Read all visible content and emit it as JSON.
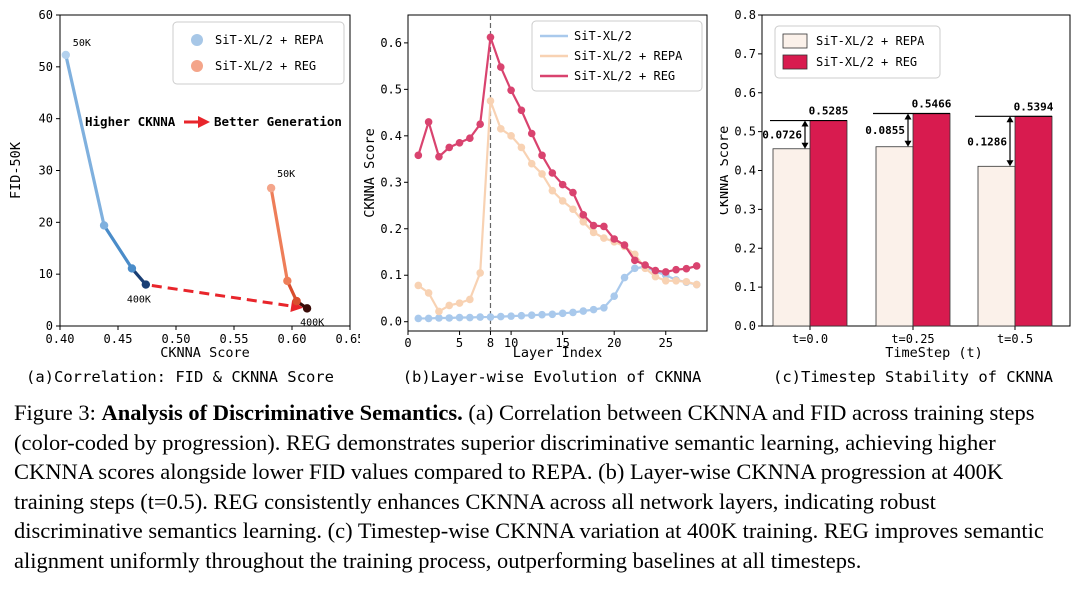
{
  "chart_data": [
    {
      "type": "line",
      "id": "a",
      "caption": "(a)Correlation: FID & CKNNA Score",
      "xlabel": "CKNNA Score",
      "ylabel": "FID-50K",
      "xlim": [
        0.4,
        0.65
      ],
      "ylim": [
        0,
        60
      ],
      "xticks": [
        "0.40",
        "0.45",
        "0.50",
        "0.55",
        "0.60",
        "0.65"
      ],
      "xtick_values": [
        0.4,
        0.45,
        0.5,
        0.55,
        0.6,
        0.65
      ],
      "yticks": [
        "0",
        "10",
        "20",
        "30",
        "40",
        "50",
        "60"
      ],
      "ytick_values": [
        0,
        10,
        20,
        30,
        40,
        50,
        60
      ],
      "legend": [
        "SiT-XL/2 + REPA",
        "SiT-XL/2 + REG"
      ],
      "legend_colors": [
        "#a7c7e7",
        "#f4a58a"
      ],
      "series": [
        {
          "name": "SiT-XL/2 + REPA",
          "x": [
            0.405,
            0.438,
            0.462,
            0.474
          ],
          "y": [
            52.3,
            19.4,
            11.1,
            8.0
          ],
          "colors": [
            "#b3d1ee",
            "#7fb0de",
            "#4a8cc9",
            "#1a3f75"
          ]
        },
        {
          "name": "SiT-XL/2 + REG",
          "x": [
            0.582,
            0.596,
            0.604,
            0.613
          ],
          "y": [
            26.6,
            8.7,
            4.8,
            3.4
          ],
          "colors": [
            "#f4a58a",
            "#ee7e59",
            "#d94e2e",
            "#3a0c08"
          ]
        }
      ],
      "annotations": {
        "repa_start": "50K",
        "reg_start": "50K",
        "repa_end": "400K",
        "reg_end": "400K",
        "message_left": "Higher CKNNA",
        "message_right": "Better Generation"
      }
    },
    {
      "type": "line",
      "id": "b",
      "caption": "(b)Layer-wise Evolution of CKNNA",
      "xlabel": "Layer Index",
      "ylabel": "CKNNA Score",
      "xlim": [
        0,
        29
      ],
      "ylim": [
        -0.02,
        0.66
      ],
      "xticks": [
        "0",
        "5",
        "8",
        "10",
        "15",
        "20",
        "25"
      ],
      "xtick_values": [
        0,
        5,
        8,
        10,
        15,
        20,
        25
      ],
      "yticks": [
        "0.0",
        "0.1",
        "0.2",
        "0.3",
        "0.4",
        "0.5",
        "0.6"
      ],
      "ytick_values": [
        0.0,
        0.1,
        0.2,
        0.3,
        0.4,
        0.5,
        0.6
      ],
      "vline_x": 8,
      "legend": [
        "SiT-XL/2",
        "SiT-XL/2 + REPA",
        "SiT-XL/2 + REG"
      ],
      "x": [
        1,
        2,
        3,
        4,
        5,
        6,
        7,
        8,
        9,
        10,
        11,
        12,
        13,
        14,
        15,
        16,
        17,
        18,
        19,
        20,
        21,
        22,
        23,
        24,
        25,
        26,
        27,
        28
      ],
      "series": [
        {
          "name": "SiT-XL/2",
          "color": "#a9c9ec",
          "values": [
            0.007,
            0.007,
            0.008,
            0.008,
            0.009,
            0.009,
            0.01,
            0.01,
            0.011,
            0.012,
            0.013,
            0.014,
            0.015,
            0.016,
            0.018,
            0.02,
            0.023,
            0.026,
            0.03,
            0.055,
            0.095,
            0.115,
            0.118,
            0.108,
            0.1,
            0.09,
            0.085,
            0.08
          ]
        },
        {
          "name": "SiT-XL/2 + REPA",
          "color": "#f8d2b3",
          "values": [
            0.078,
            0.062,
            0.022,
            0.035,
            0.04,
            0.048,
            0.105,
            0.475,
            0.415,
            0.4,
            0.375,
            0.34,
            0.318,
            0.282,
            0.26,
            0.242,
            0.215,
            0.192,
            0.18,
            0.172,
            0.162,
            0.145,
            0.115,
            0.097,
            0.088,
            0.088,
            0.086,
            0.08
          ]
        },
        {
          "name": "SiT-XL/2 + REG",
          "color": "#d9436f",
          "values": [
            0.358,
            0.43,
            0.355,
            0.375,
            0.385,
            0.395,
            0.425,
            0.612,
            0.548,
            0.498,
            0.455,
            0.405,
            0.358,
            0.32,
            0.295,
            0.278,
            0.23,
            0.207,
            0.205,
            0.178,
            0.165,
            0.132,
            0.122,
            0.11,
            0.107,
            0.112,
            0.114,
            0.12
          ]
        }
      ]
    },
    {
      "type": "bar",
      "id": "c",
      "caption": "(c)Timestep Stability of CKNNA",
      "xlabel": "TimeStep (t)",
      "ylabel": "CKNNA Score",
      "ylim": [
        0,
        0.8
      ],
      "yticks": [
        "0.0",
        "0.1",
        "0.2",
        "0.3",
        "0.4",
        "0.5",
        "0.6",
        "0.7",
        "0.8"
      ],
      "ytick_values": [
        0.0,
        0.1,
        0.2,
        0.3,
        0.4,
        0.5,
        0.6,
        0.7,
        0.8
      ],
      "categories": [
        "t=0.0",
        "t=0.25",
        "t=0.5"
      ],
      "legend": [
        "SiT-XL/2 + REPA",
        "SiT-XL/2 + REG"
      ],
      "series": [
        {
          "name": "SiT-XL/2 + REPA",
          "color": "#fbf1ea",
          "values": [
            0.4559,
            0.4611,
            0.4108
          ]
        },
        {
          "name": "SiT-XL/2 + REG",
          "color": "#d81b4f",
          "values": [
            0.5285,
            0.5466,
            0.5394
          ]
        }
      ],
      "value_labels": [
        "0.5285",
        "0.5466",
        "0.5394"
      ],
      "diff_labels": [
        "0.0726",
        "0.0855",
        "0.1286"
      ]
    }
  ],
  "caption": {
    "prefix": "Figure 3: ",
    "title": "Analysis of Discriminative Semantics.",
    "body": " (a) Correlation between CKNNA and FID across training steps (color-coded by progression). REG demonstrates superior discriminative semantic learning, achieving higher CKNNA scores alongside lower FID values compared to REPA. (b) Layer-wise CKNNA progression at 400K training steps (t=0.5). REG consistently enhances CKNNA across all network layers, indicating robust discriminative semantics learning. (c) Timestep-wise CKNNA variation at 400K training. REG improves semantic alignment uniformly throughout the training process, outperforming baselines at all timesteps."
  }
}
